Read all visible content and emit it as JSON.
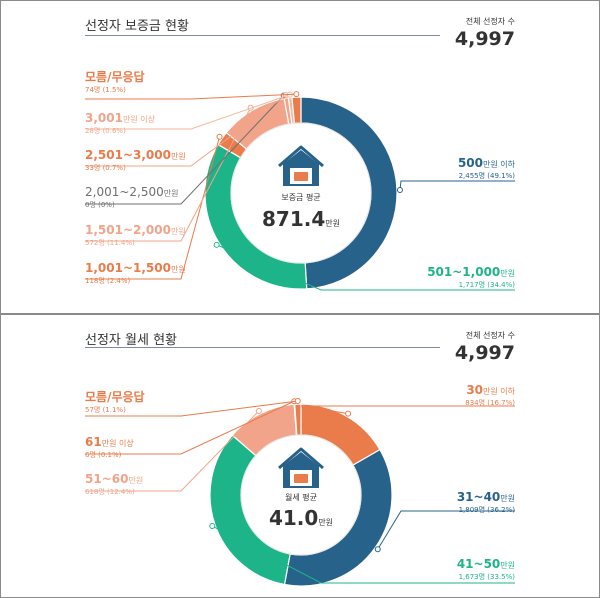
{
  "chart_data": [
    {
      "type": "pie",
      "title": "선정자 보증금 현황",
      "total_label": "전체 선정자 수",
      "total_value": "4,997",
      "center_label": "보증금 평균",
      "center_value": "871.4",
      "center_unit": "만원",
      "slices": [
        {
          "name": "500",
          "unit": "만원 이하",
          "count": "2,455명 (49.1%)",
          "percent": 49.1,
          "color": "#27628b"
        },
        {
          "name": "501~1,000",
          "unit": "만원",
          "count": "1,717명 (34.4%)",
          "percent": 34.4,
          "color": "#1db48a"
        },
        {
          "name": "1,001~1,500",
          "unit": "만원",
          "count": "118명 (2.4%)",
          "percent": 2.4,
          "color": "#ea7b4b"
        },
        {
          "name": "1,501~2,000",
          "unit": "만원",
          "count": "572명 (11.4%)",
          "percent": 11.4,
          "color": "#f2a48a"
        },
        {
          "name": "2,001~2,500",
          "unit": "만원",
          "count": "0명 (0%)",
          "percent": 0,
          "color": "#6f6f6f"
        },
        {
          "name": "2,501~3,000",
          "unit": "만원",
          "count": "33명 (0.7%)",
          "percent": 0.7,
          "color": "#f2a48a"
        },
        {
          "name": "3,001",
          "unit": "만원 이상",
          "count": "28명 (0.6%)",
          "percent": 0.6,
          "color": "#f7b69c"
        },
        {
          "name": "모름/무응답",
          "unit": "",
          "count": "74명 (1.5%)",
          "percent": 1.5,
          "color": "#ea7b4b"
        }
      ]
    },
    {
      "type": "pie",
      "title": "선정자 월세 현황",
      "total_label": "전체 선정자 수",
      "total_value": "4,997",
      "center_label": "월세 평균",
      "center_value": "41.0",
      "center_unit": "만원",
      "slices": [
        {
          "name": "30",
          "unit": "만원 이하",
          "count": "834명 (16.7%)",
          "percent": 16.7,
          "color": "#ea7b4b"
        },
        {
          "name": "31~40",
          "unit": "만원",
          "count": "1,809명 (36.2%)",
          "percent": 36.2,
          "color": "#27628b"
        },
        {
          "name": "41~50",
          "unit": "만원",
          "count": "1,673명 (33.5%)",
          "percent": 33.5,
          "color": "#1db48a"
        },
        {
          "name": "51~60",
          "unit": "만원",
          "count": "618명 (12.4%)",
          "percent": 12.4,
          "color": "#f2a48a"
        },
        {
          "name": "61",
          "unit": "만원 이상",
          "count": "6명 (0.1%)",
          "percent": 0.1,
          "color": "#ea7b4b"
        },
        {
          "name": "모름/무응답",
          "unit": "",
          "count": "57명 (1.1%)",
          "percent": 1.1,
          "color": "#ea7b4b"
        }
      ]
    }
  ]
}
